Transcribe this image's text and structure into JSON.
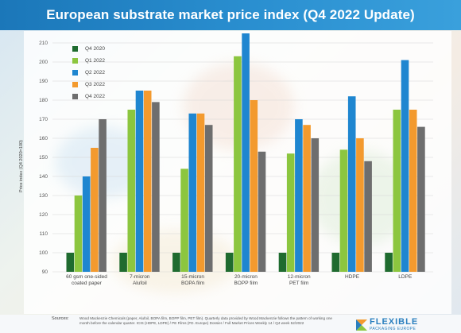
{
  "header": {
    "title": "European substrate market price index (Q4 2022 Update)"
  },
  "colors": {
    "header": "#1b77b9",
    "series": [
      "#1f6b2f",
      "#8cc63f",
      "#1f86d0",
      "#f39a2e",
      "#6e6e6e"
    ]
  },
  "chart_data": {
    "type": "bar",
    "title": "European substrate market price index (Q4 2022 Update)",
    "ylabel": "Price index (Q4 2020=100)",
    "ylim": [
      90,
      215
    ],
    "yticks": [
      90,
      100,
      110,
      120,
      130,
      140,
      150,
      160,
      170,
      180,
      190,
      200,
      210
    ],
    "grid": true,
    "legend_position": "top-left",
    "categories": [
      [
        "60 gsm one-sided",
        "coated paper"
      ],
      [
        "7-micron",
        "Alufoil"
      ],
      [
        "15-micron",
        "BOPA film"
      ],
      [
        "20-micron",
        "BOPP film"
      ],
      [
        "12-micron",
        "PET film"
      ],
      [
        "HDPE"
      ],
      [
        "LDPE"
      ]
    ],
    "series": [
      {
        "name": "Q4 2020",
        "values": [
          100,
          100,
          100,
          100,
          100,
          100,
          100
        ]
      },
      {
        "name": "Q1 2022",
        "values": [
          130,
          175,
          144,
          203,
          152,
          154,
          175
        ]
      },
      {
        "name": "Q2 2022",
        "values": [
          140,
          185,
          173,
          216,
          170,
          182,
          201
        ]
      },
      {
        "name": "Q3 2022",
        "values": [
          155,
          185,
          173,
          180,
          167,
          160,
          175
        ]
      },
      {
        "name": "Q4 2022",
        "values": [
          170,
          179,
          167,
          153,
          160,
          148,
          166
        ]
      }
    ]
  },
  "footer": {
    "sources_label": "Sources:",
    "sources_text": "Wood Mackenzie Chemicals (paper, Alufoil, BOPA film, BOPP film, PET film). Quarterly data provided by Wood Mackenzie follows the pattern of working one month before the calendar quarter. ICIS (HDPE, LDPE) / PE Films (FD. Europe) Dossier / Full Market Prices Weekly 14 / Q4 week 52/2022",
    "logo_word": "FLEXIBLE",
    "logo_sub": "PACKAGING EUROPE"
  }
}
